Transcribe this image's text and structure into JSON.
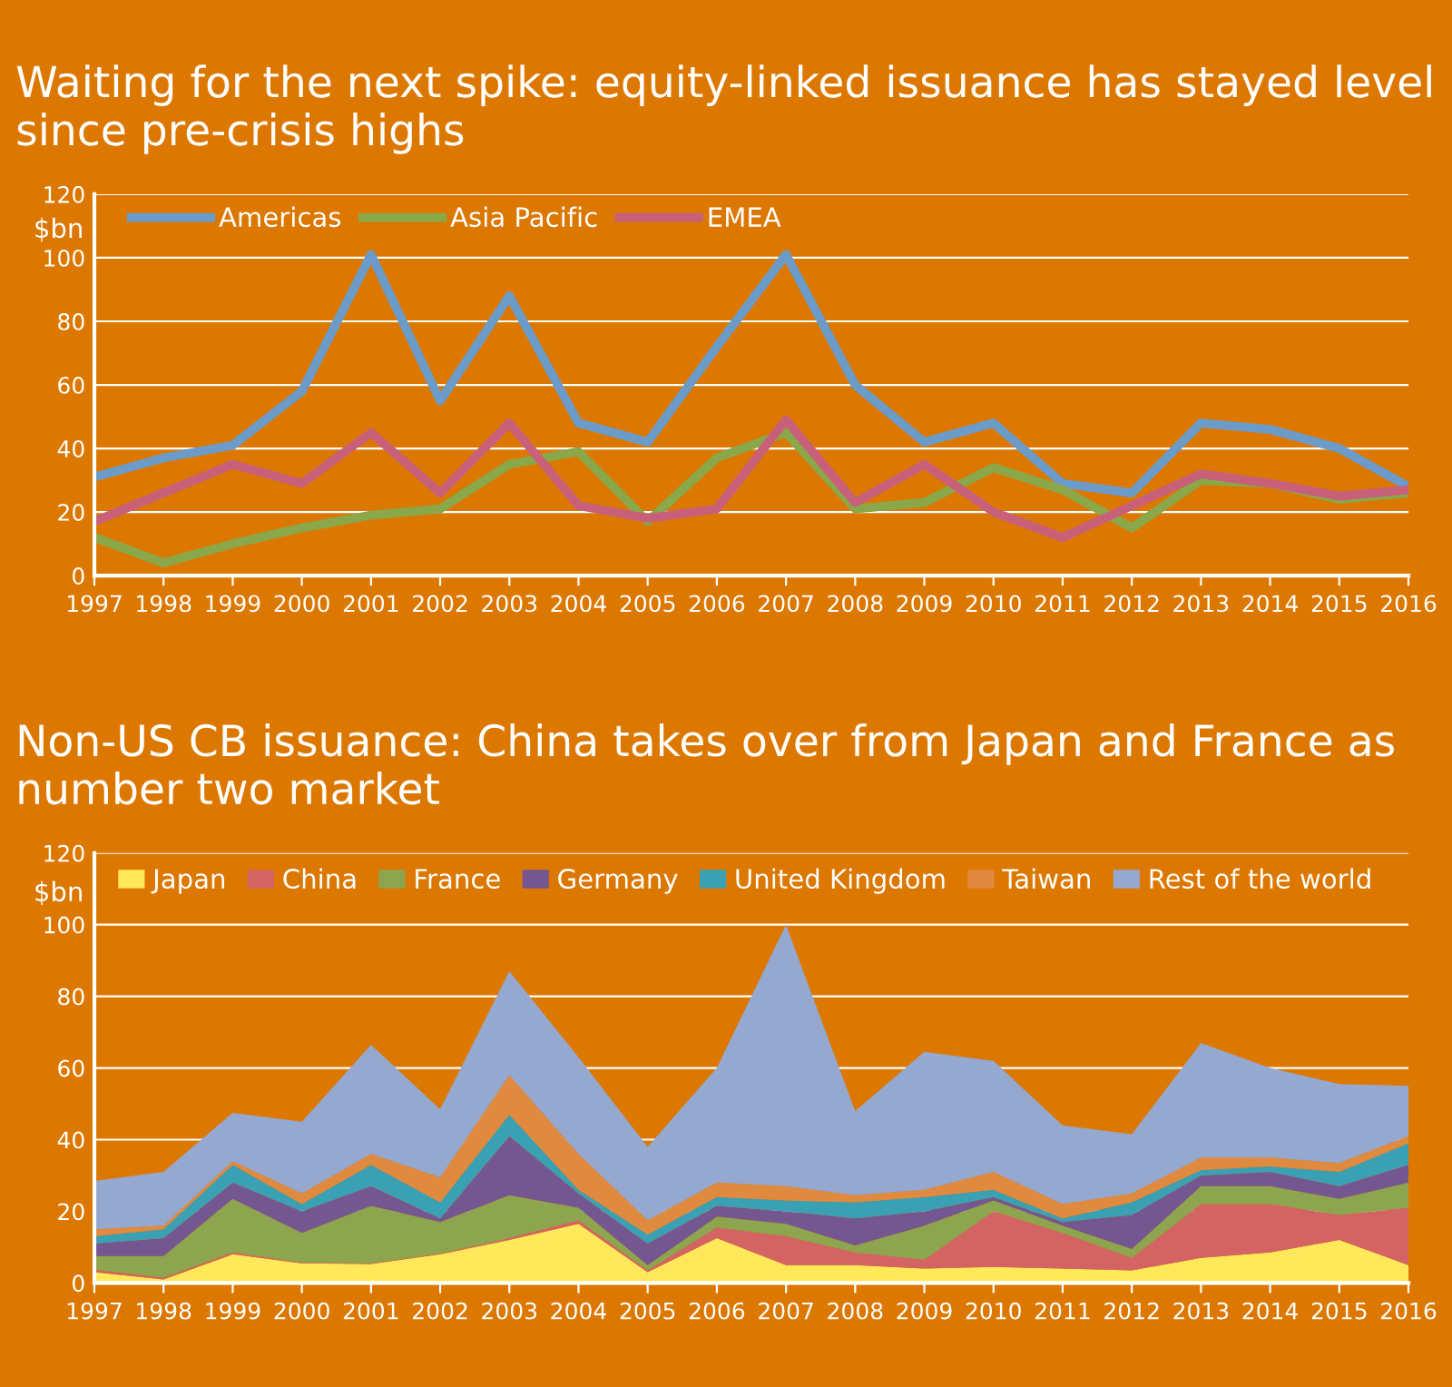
{
  "chart_data": [
    {
      "type": "line",
      "title": "Waiting for the next spike: equity-linked issuance has stayed level since pre-crisis highs",
      "ylabel": "$bn",
      "categories": [
        "1997",
        "1998",
        "1999",
        "2000",
        "2001",
        "2002",
        "2003",
        "2004",
        "2005",
        "2006",
        "2007",
        "2008",
        "2009",
        "2010",
        "2011",
        "2012",
        "2013",
        "2014",
        "2015",
        "2016"
      ],
      "series": [
        {
          "name": "Americas",
          "color": "#6b9bc8",
          "values": [
            31,
            37,
            41,
            58,
            101,
            55,
            88,
            48,
            42,
            72,
            101,
            60,
            42,
            48,
            29,
            26,
            48,
            46,
            40,
            28
          ]
        },
        {
          "name": "Asia Pacific",
          "color": "#8aa84a",
          "values": [
            12,
            4,
            10,
            15,
            19,
            21,
            35,
            39,
            17,
            37,
            45,
            21,
            23,
            34,
            27,
            15,
            30,
            29,
            24,
            26
          ]
        },
        {
          "name": "EMEA",
          "color": "#c8607a",
          "values": [
            17,
            26,
            35,
            29,
            45,
            26,
            48,
            22,
            18,
            21,
            49,
            23,
            35,
            20,
            12,
            22,
            32,
            29,
            25,
            27
          ]
        }
      ],
      "ylim": [
        0,
        120
      ],
      "yticks": [
        0,
        20,
        40,
        60,
        80,
        100,
        120
      ],
      "grid": "y",
      "legend": "top left",
      "marker": "none",
      "line_style": "solid"
    },
    {
      "type": "area",
      "stacked": true,
      "title": "Non-US CB issuance: China takes over from Japan and France as number two market",
      "ylabel": "$bn",
      "categories": [
        "1997",
        "1998",
        "1999",
        "2000",
        "2001",
        "2002",
        "2003",
        "2004",
        "2005",
        "2006",
        "2007",
        "2008",
        "2009",
        "2010",
        "2011",
        "2012",
        "2013",
        "2014",
        "2015",
        "2016"
      ],
      "series": [
        {
          "name": "Japan",
          "color": "#ffe85a",
          "values": [
            3,
            1,
            8,
            5.5,
            5.3,
            8,
            12,
            16.5,
            3,
            12.5,
            5,
            5,
            4,
            4.5,
            4,
            3.5,
            7,
            8.5,
            12,
            5
          ]
        },
        {
          "name": "China",
          "color": "#d46464",
          "values": [
            0.7,
            0.5,
            0.5,
            0.2,
            0.2,
            0.2,
            0.5,
            1,
            0.5,
            3,
            8,
            3.5,
            2.5,
            15.5,
            10,
            3.5,
            15,
            13.5,
            7,
            16
          ]
        },
        {
          "name": "France",
          "color": "#8ca54e",
          "values": [
            3.8,
            6,
            15,
            8.3,
            16,
            8.8,
            12,
            3.5,
            1.5,
            3,
            3.5,
            2,
            9.5,
            3,
            2,
            2.5,
            5,
            5,
            4.5,
            7
          ]
        },
        {
          "name": "Germany",
          "color": "#745791",
          "values": [
            3.5,
            5,
            4.5,
            6,
            5.5,
            1,
            16.5,
            4,
            6,
            3,
            3.5,
            7.5,
            4,
            1,
            1,
            9.5,
            3,
            4,
            3.5,
            5
          ]
        },
        {
          "name": "United Kingdom",
          "color": "#3aa0b4",
          "values": [
            2,
            2.5,
            5,
            2,
            6,
            4.5,
            6,
            1,
            2.5,
            2.5,
            3,
            4.5,
            4,
            2,
            1,
            3.5,
            1.5,
            1.5,
            4,
            6
          ]
        },
        {
          "name": "Taiwan",
          "color": "#e08a40",
          "values": [
            2,
            1,
            1,
            3,
            3,
            7,
            11,
            10,
            4,
            4,
            4,
            2,
            2,
            5,
            4,
            2.5,
            3.5,
            2.5,
            2.5,
            2
          ]
        },
        {
          "name": "Rest of the world",
          "color": "#94a8d0",
          "values": [
            13.5,
            15,
            13.5,
            20,
            30.5,
            19,
            29,
            27,
            20.5,
            32,
            73,
            23.5,
            38.5,
            31,
            22,
            16.5,
            32,
            25,
            22,
            14
          ]
        }
      ],
      "ylim": [
        0,
        120
      ],
      "yticks": [
        0,
        20,
        40,
        60,
        80,
        100,
        120
      ],
      "grid": "y",
      "legend": "top left"
    }
  ]
}
